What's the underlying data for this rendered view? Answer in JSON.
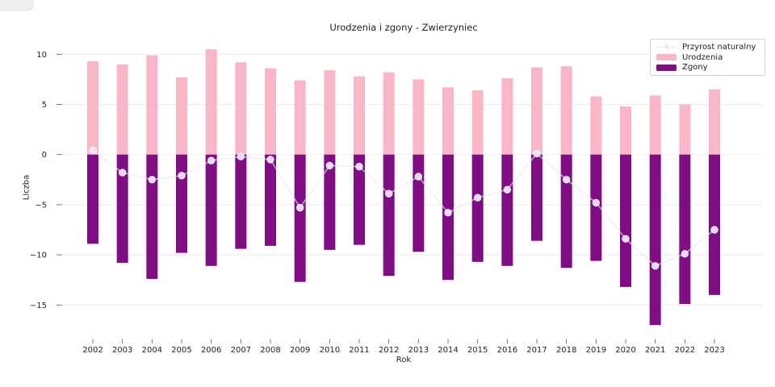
{
  "title": "Urodzenia i zgony - Zwierzyniec",
  "axes": {
    "xlabel": "Rok",
    "ylabel": "Liczba"
  },
  "legend": {
    "items": [
      {
        "label": "Przyrost naturalny",
        "type": "line"
      },
      {
        "label": "Urodzenia",
        "type": "patch"
      },
      {
        "label": "Zgony",
        "type": "patch"
      }
    ]
  },
  "colors": {
    "urodzenia": "#f9b6c7",
    "zgony": "#800d84",
    "przyrost_line": "#e6e6fa",
    "marker_fill": "#e9e9f8",
    "grid": "#ececec",
    "tick": "#555555",
    "text": "#1f1f1f",
    "legend_border": "#d6d6d6"
  },
  "chart_data": {
    "type": "bar",
    "title": "Urodzenia i zgony - Zwierzyniec",
    "xlabel": "Rok",
    "ylabel": "Liczba",
    "categories": [
      "2002",
      "2003",
      "2004",
      "2005",
      "2006",
      "2007",
      "2008",
      "2009",
      "2010",
      "2011",
      "2012",
      "2013",
      "2014",
      "2015",
      "2016",
      "2017",
      "2018",
      "2019",
      "2020",
      "2021",
      "2022",
      "2023"
    ],
    "yticks": [
      10,
      5,
      0,
      -5,
      -10,
      -15
    ],
    "ytick_labels": [
      "10",
      "5",
      "0",
      "−5",
      "−10",
      "−15"
    ],
    "ylim": [
      -18.4,
      11.2
    ],
    "grid": true,
    "legend_position": "upper right",
    "series": [
      {
        "name": "Urodzenia",
        "type": "bar",
        "values": [
          9.3,
          9.0,
          9.9,
          7.7,
          10.5,
          9.2,
          8.6,
          7.4,
          8.4,
          7.8,
          8.2,
          7.5,
          6.7,
          6.4,
          7.6,
          8.7,
          8.8,
          5.8,
          4.8,
          5.9,
          5.0,
          6.5
        ]
      },
      {
        "name": "Zgony",
        "type": "bar",
        "values": [
          -8.9,
          -10.8,
          -12.4,
          -9.8,
          -11.1,
          -9.4,
          -9.1,
          -12.7,
          -9.5,
          -9.0,
          -12.1,
          -9.7,
          -12.5,
          -10.7,
          -11.1,
          -8.6,
          -11.3,
          -10.6,
          -13.2,
          -17.0,
          -14.9,
          -14.0
        ]
      },
      {
        "name": "Przyrost naturalny",
        "type": "line",
        "values": [
          0.4,
          -1.8,
          -2.5,
          -2.1,
          -0.6,
          -0.2,
          -0.5,
          -5.3,
          -1.1,
          -1.2,
          -3.9,
          -2.2,
          -5.8,
          -4.3,
          -3.5,
          0.1,
          -2.5,
          -4.8,
          -8.4,
          -11.1,
          -9.9,
          -7.5
        ]
      }
    ]
  }
}
